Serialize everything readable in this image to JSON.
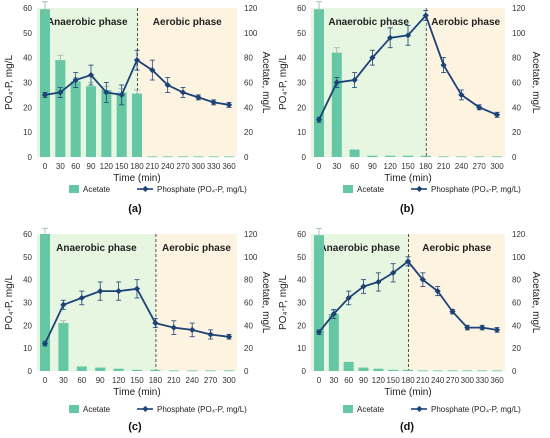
{
  "figure": {
    "legend": {
      "acetate": "Acetate",
      "phosphate": "Phosphate (PO₄-P, mg/L)"
    },
    "phase_labels": {
      "anaerobic": "Anaerobic phase",
      "aerobic": "Aerobic phase"
    },
    "colors": {
      "anaerobic_bg": "#e6f6e1",
      "aerobic_bg": "#fdf3e1",
      "acetate_bar": "#66c7a4",
      "phosphate_line": "#1d4276",
      "divider": "#555555"
    }
  },
  "chart_data": [
    {
      "type": "bar+line",
      "panel_label": "(a)",
      "xlabel": "Time (min)",
      "ylabel_left": "PO₄-P, mg/L",
      "ylabel_right": "Acetate, mg/L",
      "x_ticks": [
        0,
        30,
        60,
        90,
        120,
        150,
        180,
        210,
        240,
        270,
        300,
        330,
        360
      ],
      "phase_boundary": 180,
      "ylim_left": [
        0,
        60
      ],
      "yticks_left": [
        0,
        10,
        20,
        30,
        40,
        50,
        60
      ],
      "ylim_right": [
        0,
        120
      ],
      "yticks_right": [
        0,
        20,
        40,
        60,
        80,
        100,
        120
      ],
      "series": [
        {
          "name": "Acetate",
          "kind": "bar",
          "axis": "right",
          "x": [
            0,
            30,
            60,
            90,
            120,
            150,
            180,
            210,
            240,
            270,
            300,
            330,
            360
          ],
          "values": [
            119,
            78,
            61,
            57,
            54,
            52,
            51,
            0.5,
            0.5,
            0.5,
            0.5,
            0.5,
            0.5
          ],
          "errors": [
            6,
            4,
            3,
            3,
            3,
            3,
            3,
            0,
            0,
            0,
            0,
            0,
            0
          ]
        },
        {
          "name": "Phosphate (PO₄-P, mg/L)",
          "kind": "line",
          "axis": "left",
          "x": [
            0,
            30,
            60,
            90,
            120,
            150,
            180,
            210,
            240,
            270,
            300,
            330,
            360
          ],
          "values": [
            25,
            26,
            31,
            33,
            26,
            25,
            39,
            35,
            29,
            26,
            24,
            22,
            21
          ],
          "errors": [
            1,
            2,
            3,
            4,
            4,
            4,
            4,
            4,
            3,
            2,
            1,
            1,
            1
          ]
        }
      ]
    },
    {
      "type": "bar+line",
      "panel_label": "(b)",
      "xlabel": "Time (min)",
      "ylabel_left": "PO₄-P, mg/L",
      "ylabel_right": "Acetate, mg/L",
      "x_ticks": [
        0,
        30,
        60,
        90,
        120,
        150,
        180,
        210,
        240,
        270,
        300
      ],
      "phase_boundary": 180,
      "ylim_left": [
        0,
        60
      ],
      "yticks_left": [
        0,
        10,
        20,
        30,
        40,
        50,
        60
      ],
      "ylim_right": [
        0,
        120
      ],
      "yticks_right": [
        0,
        20,
        40,
        60,
        80,
        100,
        120
      ],
      "series": [
        {
          "name": "Acetate",
          "kind": "bar",
          "axis": "right",
          "x": [
            0,
            30,
            60,
            90,
            120,
            150,
            180,
            210,
            240,
            270,
            300
          ],
          "values": [
            119,
            84,
            6,
            1,
            1,
            1,
            1,
            0.5,
            0.5,
            0.5,
            0.5
          ],
          "errors": [
            6,
            4,
            0,
            0,
            0,
            0,
            0,
            0,
            0,
            0,
            0
          ]
        },
        {
          "name": "Phosphate (PO₄-P, mg/L)",
          "kind": "line",
          "axis": "left",
          "x": [
            0,
            30,
            60,
            90,
            120,
            150,
            180,
            210,
            240,
            270,
            300
          ],
          "values": [
            15,
            30,
            31,
            40,
            48,
            49,
            57,
            37,
            25,
            20,
            17
          ],
          "errors": [
            1,
            2,
            3,
            3,
            4,
            4,
            2,
            3,
            2,
            1,
            1
          ]
        }
      ]
    },
    {
      "type": "bar+line",
      "panel_label": "(c)",
      "xlabel": "Time (min)",
      "ylabel_left": "PO₄-P, mg/L",
      "ylabel_right": "Acetate, mg/L",
      "x_ticks": [
        0,
        30,
        60,
        90,
        120,
        150,
        180,
        210,
        240,
        270,
        300
      ],
      "phase_boundary": 180,
      "ylim_left": [
        0,
        60
      ],
      "yticks_left": [
        0,
        10,
        20,
        30,
        40,
        50,
        60
      ],
      "ylim_right": [
        0,
        120
      ],
      "yticks_right": [
        0,
        20,
        40,
        60,
        80,
        100,
        120
      ],
      "series": [
        {
          "name": "Acetate",
          "kind": "bar",
          "axis": "right",
          "x": [
            0,
            30,
            60,
            90,
            120,
            150,
            180,
            210,
            240,
            270,
            300
          ],
          "values": [
            120,
            42,
            4,
            3,
            2,
            1,
            1,
            0.5,
            0.5,
            0.5,
            0.5
          ],
          "errors": [
            5,
            2,
            0,
            0,
            0,
            0,
            0,
            0,
            0,
            0,
            0
          ]
        },
        {
          "name": "Phosphate (PO₄-P, mg/L)",
          "kind": "line",
          "axis": "left",
          "x": [
            0,
            30,
            60,
            90,
            120,
            150,
            180,
            210,
            240,
            270,
            300
          ],
          "values": [
            12,
            29,
            32,
            35,
            35,
            36,
            21,
            19,
            18,
            16,
            15
          ],
          "errors": [
            1,
            2,
            3,
            4,
            4,
            4,
            2,
            3,
            3,
            2,
            1
          ]
        }
      ]
    },
    {
      "type": "bar+line",
      "panel_label": "(d)",
      "xlabel": "Time (min)",
      "ylabel_left": "PO₄-P, mg/L",
      "ylabel_right": "Acetate, mg/L",
      "x_ticks": [
        0,
        30,
        60,
        90,
        120,
        150,
        180,
        210,
        240,
        270,
        300,
        330,
        360
      ],
      "phase_boundary": 180,
      "ylim_left": [
        0,
        60
      ],
      "yticks_left": [
        0,
        10,
        20,
        30,
        40,
        50,
        60
      ],
      "ylim_right": [
        0,
        120
      ],
      "yticks_right": [
        0,
        20,
        40,
        60,
        80,
        100,
        120
      ],
      "series": [
        {
          "name": "Acetate",
          "kind": "bar",
          "axis": "right",
          "x": [
            0,
            30,
            60,
            90,
            120,
            150,
            180,
            210,
            240,
            270,
            300,
            330,
            360
          ],
          "values": [
            119,
            50,
            8,
            3,
            2,
            1,
            1,
            0.5,
            0.5,
            0.5,
            0.5,
            0.5,
            0.5
          ],
          "errors": [
            6,
            3,
            0,
            0,
            0,
            0,
            0,
            0,
            0,
            0,
            0,
            0,
            0
          ]
        },
        {
          "name": "Phosphate (PO₄-P, mg/L)",
          "kind": "line",
          "axis": "left",
          "x": [
            0,
            30,
            60,
            90,
            120,
            150,
            180,
            210,
            240,
            270,
            300,
            330,
            360
          ],
          "values": [
            17,
            25,
            32,
            37,
            39,
            43,
            48,
            40,
            35,
            26,
            19,
            19,
            18
          ],
          "errors": [
            1,
            2,
            3,
            3,
            4,
            4,
            2,
            3,
            2,
            1,
            1,
            1,
            1
          ]
        }
      ]
    }
  ]
}
